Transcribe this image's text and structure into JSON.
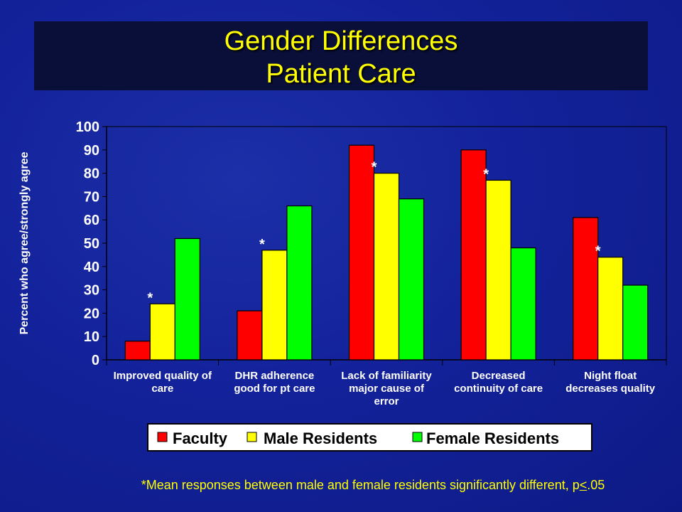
{
  "slide": {
    "title_line1": "Gender Differences",
    "title_line2": "Patient Care",
    "footnote": "*Mean responses between male and female residents significantly different, p<.05"
  },
  "colors": {
    "background": "#13229a",
    "text": "#ffffff",
    "title": "#ffff00",
    "faculty": "#ff0000",
    "male": "#ffff00",
    "female": "#00ff00"
  },
  "chart_data": {
    "type": "bar",
    "ylabel": "Percent who agree/strongly agree",
    "xlabel": "",
    "ylim": [
      0,
      100
    ],
    "yticks": [
      0,
      10,
      20,
      30,
      40,
      50,
      60,
      70,
      80,
      90,
      100
    ],
    "grid": false,
    "legend_position": "bottom",
    "categories": [
      "Improved quality of care",
      "DHR adherence good for pt care",
      "Lack of familiarity major cause of error",
      "Decreased continuity of care",
      "Night float decreases quality"
    ],
    "category_lines": [
      [
        "Improved quality of",
        "care"
      ],
      [
        "DHR adherence",
        "good for pt care"
      ],
      [
        "Lack of familiarity",
        "major cause of",
        "error"
      ],
      [
        "Decreased",
        "continuity of care"
      ],
      [
        "Night float",
        "decreases quality"
      ]
    ],
    "series": [
      {
        "name": "Faculty",
        "color": "#ff0000",
        "values": [
          8,
          21,
          92,
          90,
          61
        ]
      },
      {
        "name": "Male Residents",
        "color": "#ffff00",
        "values": [
          24,
          47,
          80,
          77,
          44
        ]
      },
      {
        "name": "Female Residents",
        "color": "#00ff00",
        "values": [
          52,
          66,
          69,
          48,
          32
        ]
      }
    ],
    "annotations": [
      {
        "text": "*",
        "category": 0
      },
      {
        "text": "*",
        "category": 1
      },
      {
        "text": "*",
        "category": 2
      },
      {
        "text": "*",
        "category": 3
      },
      {
        "text": "*",
        "category": 4
      }
    ]
  }
}
